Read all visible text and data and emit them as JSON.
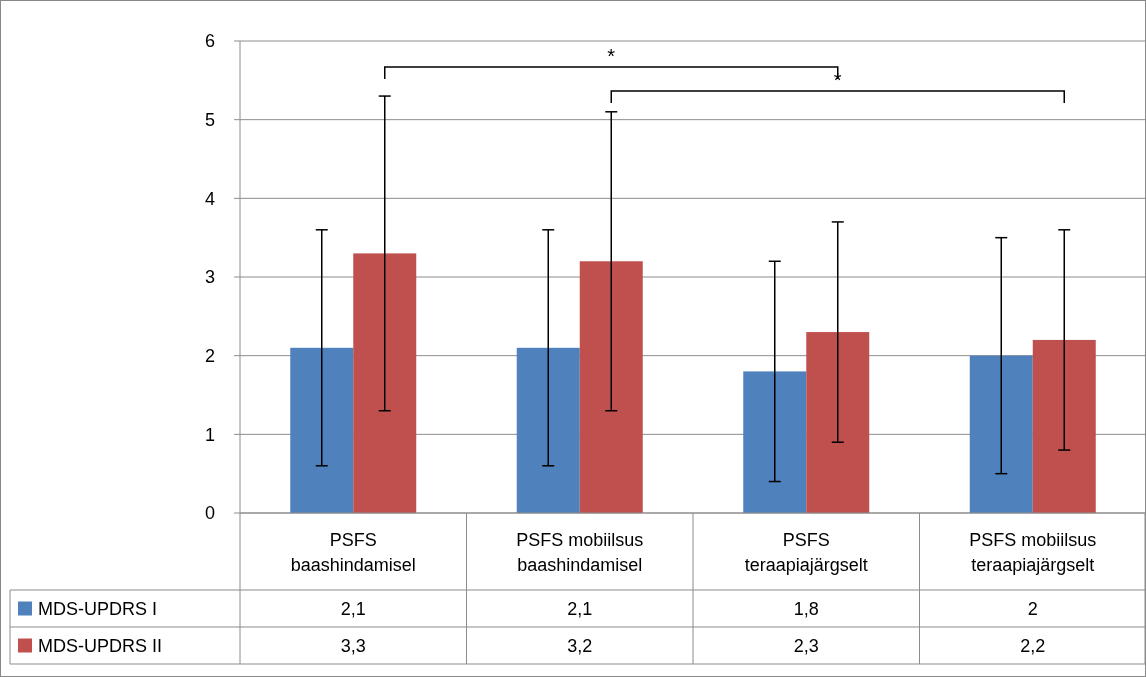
{
  "chart_data": {
    "type": "bar",
    "categories": [
      "PSFS baashindamisel",
      "PSFS mobiilsus baashindamisel",
      "PSFS teraapiajärgselt",
      "PSFS mobiilsus teraapiajärgselt"
    ],
    "series": [
      {
        "name": "MDS-UPDRS I",
        "color": "#4f81bd",
        "values": [
          2.1,
          2.1,
          1.8,
          2
        ],
        "errors": [
          1.5,
          1.5,
          1.4,
          1.5
        ],
        "value_labels": [
          "2,1",
          "2,1",
          "1,8",
          "2"
        ]
      },
      {
        "name": "MDS-UPDRS II",
        "color": "#c0504d",
        "values": [
          3.3,
          3.2,
          2.3,
          2.2
        ],
        "errors": [
          2.0,
          1.9,
          1.4,
          1.4
        ],
        "value_labels": [
          "3,3",
          "3,2",
          "2,3",
          "2,2"
        ]
      }
    ],
    "ylim": [
      0,
      6
    ],
    "yticks": [
      0,
      1,
      2,
      3,
      4,
      5,
      6
    ],
    "grid": "y",
    "legend": "bottom left",
    "annotations": [
      "*",
      "*"
    ]
  }
}
